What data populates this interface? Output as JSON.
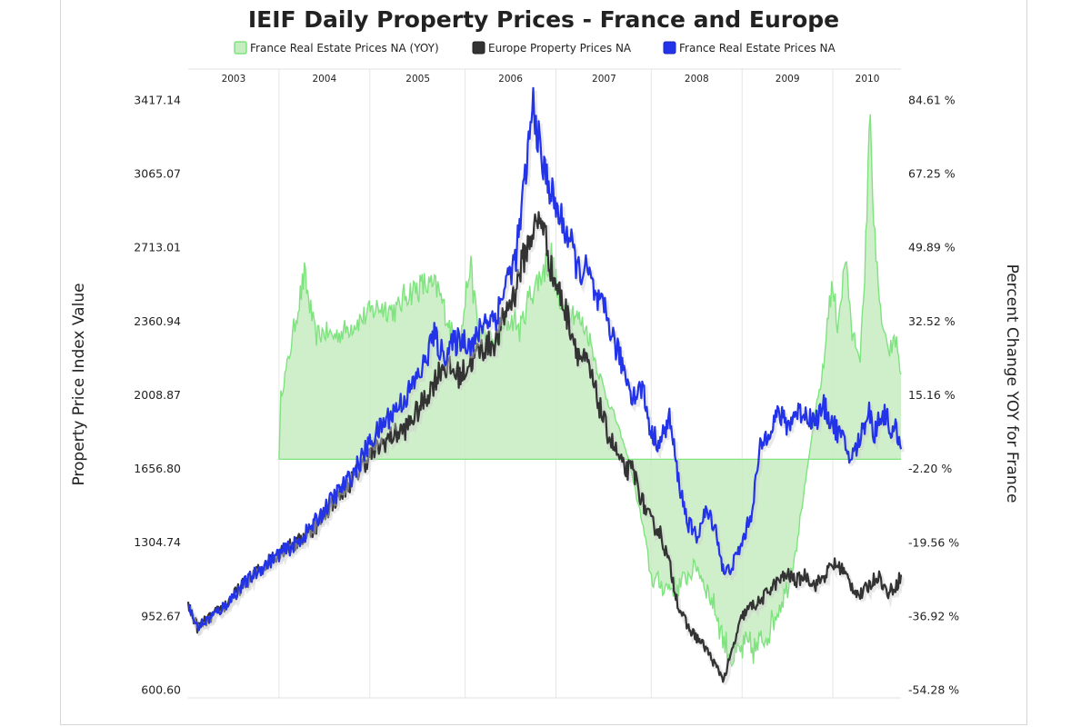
{
  "chart_data": {
    "type": "line",
    "title": "IEIF Daily Property Prices - France and Europe",
    "ylabel_left": "Property Price Index Value",
    "ylabel_right": "Percent Change YOY for France",
    "left_ticks": [
      "3417.14",
      "3065.07",
      "2713.01",
      "2360.94",
      "2008.87",
      "1656.80",
      "1304.74",
      "952.67",
      "600.60"
    ],
    "right_ticks": [
      "84.61 %",
      "67.25 %",
      "49.89 %",
      "32.52 %",
      "15.16 %",
      "-2.20 %",
      "-19.56 %",
      "-36.92 %",
      "-54.28 %"
    ],
    "ylim_left": [
      600.6,
      3417.14
    ],
    "ylim_right": [
      -54.28,
      84.61
    ],
    "xlim": [
      2002.6,
      2010.45
    ],
    "year_labels": [
      "2003",
      "2004",
      "2005",
      "2006",
      "2007",
      "2008",
      "2009",
      "2010"
    ],
    "year_boundaries": [
      2003.6,
      2004.6,
      2005.65,
      2006.65,
      2007.7,
      2008.7,
      2009.7
    ],
    "year_label_positions": [
      2003.1,
      2004.1,
      2005.13,
      2006.15,
      2007.18,
      2008.2,
      2009.2,
      2010.08
    ],
    "legend_position": "top",
    "grid": "vertical",
    "series": [
      {
        "name": "France Real Estate Prices NA (YOY)",
        "axis": "right",
        "render": "area",
        "baseline": 0,
        "color": "#7fe37f",
        "fill": "#c6ecc0",
        "x": [
          2003.6,
          2003.62,
          2003.7,
          2003.8,
          2003.88,
          2003.95,
          2004.0,
          2004.1,
          2004.2,
          2004.3,
          2004.5,
          2004.7,
          2004.9,
          2005.0,
          2005.2,
          2005.35,
          2005.5,
          2005.6,
          2005.7,
          2005.8,
          2006.0,
          2006.1,
          2006.2,
          2006.25,
          2006.35,
          2006.5,
          2006.6,
          2006.7,
          2006.8,
          2007.0,
          2007.1,
          2007.2,
          2007.3,
          2007.45,
          2007.6,
          2007.7,
          2007.85,
          2008.0,
          2008.2,
          2008.4,
          2008.5,
          2008.6,
          2008.75,
          2008.85,
          2009.0,
          2009.1,
          2009.2,
          2009.3,
          2009.4,
          2009.5,
          2009.6,
          2009.65,
          2009.7,
          2009.75,
          2009.85,
          2009.9,
          2010.0,
          2010.05,
          2010.1,
          2010.2,
          2010.3,
          2010.4,
          2010.45
        ],
        "values": [
          0,
          15,
          23,
          35,
          43,
          35,
          29,
          30,
          29,
          30,
          33,
          36,
          35,
          39,
          41,
          40,
          30,
          28,
          46,
          30,
          27,
          32,
          33,
          30,
          38,
          44,
          48,
          35,
          36,
          30,
          22,
          15,
          10,
          0,
          -15,
          -28,
          -30,
          -30,
          -25,
          -35,
          -43,
          -47,
          -44,
          -45,
          -40,
          -35,
          -30,
          -20,
          -5,
          10,
          22,
          36,
          40,
          32,
          48,
          30,
          25,
          40,
          81,
          38,
          25,
          28,
          20
        ]
      },
      {
        "name": "Europe Property Prices NA",
        "axis": "left",
        "render": "line",
        "color": "#333333",
        "x": [
          2002.6,
          2002.7,
          2002.8,
          2003.0,
          2003.2,
          2003.4,
          2003.6,
          2003.8,
          2004.0,
          2004.2,
          2004.4,
          2004.6,
          2004.8,
          2005.0,
          2005.2,
          2005.4,
          2005.6,
          2005.8,
          2006.0,
          2006.1,
          2006.2,
          2006.25,
          2006.3,
          2006.4,
          2006.5,
          2006.6,
          2006.7,
          2006.8,
          2006.9,
          2007.0,
          2007.1,
          2007.2,
          2007.3,
          2007.4,
          2007.5,
          2007.6,
          2007.7,
          2007.8,
          2007.9,
          2008.0,
          2008.1,
          2008.2,
          2008.3,
          2008.4,
          2008.5,
          2008.6,
          2008.7,
          2008.8,
          2008.9,
          2009.0,
          2009.1,
          2009.2,
          2009.3,
          2009.4,
          2009.5,
          2009.6,
          2009.7,
          2009.8,
          2009.9,
          2010.0,
          2010.1,
          2010.2,
          2010.3,
          2010.4,
          2010.45
        ],
        "values": [
          1000,
          900,
          930,
          1000,
          1100,
          1180,
          1260,
          1300,
          1380,
          1500,
          1600,
          1720,
          1800,
          1850,
          1980,
          2150,
          2100,
          2220,
          2270,
          2410,
          2500,
          2600,
          2670,
          2800,
          2850,
          2600,
          2480,
          2350,
          2200,
          2150,
          2000,
          1850,
          1750,
          1650,
          1650,
          1500,
          1400,
          1350,
          1200,
          1000,
          900,
          850,
          800,
          720,
          650,
          800,
          950,
          1000,
          1020,
          1080,
          1120,
          1150,
          1120,
          1150,
          1100,
          1140,
          1200,
          1180,
          1100,
          1050,
          1100,
          1150,
          1060,
          1100,
          1150
        ]
      },
      {
        "name": "France Real Estate Prices NA",
        "axis": "left",
        "render": "line",
        "color": "#2233e8",
        "x": [
          2002.6,
          2002.7,
          2002.8,
          2003.0,
          2003.2,
          2003.4,
          2003.6,
          2003.8,
          2004.0,
          2004.2,
          2004.4,
          2004.6,
          2004.8,
          2005.0,
          2005.2,
          2005.3,
          2005.4,
          2005.6,
          2005.75,
          2005.85,
          2006.0,
          2006.1,
          2006.2,
          2006.25,
          2006.3,
          2006.4,
          2006.5,
          2006.55,
          2006.65,
          2006.8,
          2006.9,
          2007.0,
          2007.1,
          2007.2,
          2007.3,
          2007.4,
          2007.5,
          2007.6,
          2007.7,
          2007.8,
          2007.9,
          2008.0,
          2008.1,
          2008.2,
          2008.3,
          2008.4,
          2008.5,
          2008.6,
          2008.7,
          2008.8,
          2008.9,
          2009.0,
          2009.1,
          2009.2,
          2009.3,
          2009.4,
          2009.5,
          2009.6,
          2009.7,
          2009.8,
          2009.9,
          2010.0,
          2010.1,
          2010.15,
          2010.2,
          2010.3,
          2010.35,
          2010.4,
          2010.45
        ],
        "values": [
          1000,
          900,
          930,
          1000,
          1100,
          1180,
          1250,
          1300,
          1400,
          1520,
          1620,
          1780,
          1900,
          2000,
          2150,
          2300,
          2200,
          2280,
          2250,
          2360,
          2390,
          2550,
          2650,
          2800,
          3000,
          3400,
          3100,
          3050,
          2900,
          2750,
          2600,
          2600,
          2450,
          2400,
          2250,
          2130,
          2000,
          2050,
          1820,
          1780,
          1900,
          1600,
          1400,
          1330,
          1450,
          1390,
          1150,
          1200,
          1300,
          1440,
          1750,
          1850,
          1920,
          1860,
          1930,
          1920,
          1880,
          1950,
          1870,
          1800,
          1700,
          1800,
          1950,
          1800,
          1900,
          1920,
          1800,
          1850,
          1750
        ]
      }
    ]
  }
}
